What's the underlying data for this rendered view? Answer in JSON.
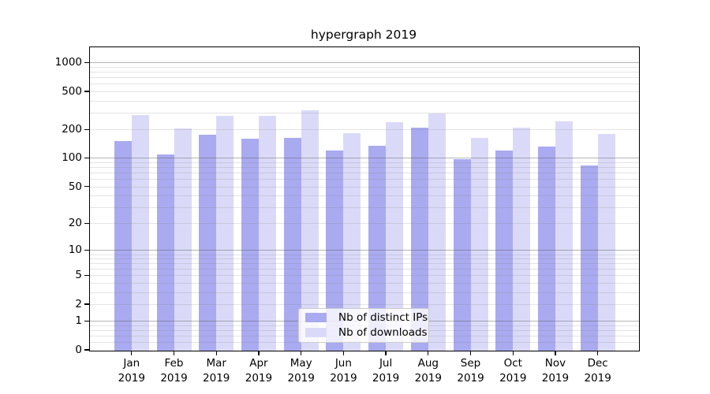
{
  "title": "hypergraph 2019",
  "legend": {
    "items": [
      {
        "label": "Nb of distinct IPs",
        "color": "#aaaaf0"
      },
      {
        "label": "Nb of downloads",
        "color": "#dadaf8"
      }
    ]
  },
  "chart_data": {
    "type": "bar",
    "title": "hypergraph 2019",
    "categories": [
      "Jan",
      "Feb",
      "Mar",
      "Apr",
      "May",
      "Jun",
      "Jul",
      "Aug",
      "Sep",
      "Oct",
      "Nov",
      "Dec"
    ],
    "xtick_year": "2019",
    "series": [
      {
        "name": "Nb of distinct IPs",
        "color": "#aaaaf0",
        "values": [
          152,
          108,
          174,
          159,
          164,
          121,
          134,
          207,
          97,
          120,
          132,
          83
        ]
      },
      {
        "name": "Nb of downloads",
        "color": "#dadaf8",
        "values": [
          280,
          203,
          279,
          277,
          318,
          183,
          239,
          295,
          163,
          207,
          243,
          180
        ]
      }
    ],
    "xlabel": "",
    "ylabel": "",
    "yscale": "log1p",
    "ylim": [
      0,
      1480
    ],
    "ytick_labels": [
      "1000",
      "500",
      "200",
      "100",
      "50",
      "20",
      "10",
      "5",
      "2",
      "1",
      "0"
    ],
    "ytick_values": [
      1000,
      500,
      200,
      100,
      50,
      20,
      10,
      5,
      2,
      1,
      0
    ],
    "major_gridlines": [
      1,
      10,
      100,
      1000
    ],
    "minor_gridlines": [
      0.2,
      0.4,
      0.6,
      0.8,
      2,
      3,
      4,
      5,
      6,
      7,
      8,
      9,
      20,
      30,
      40,
      50,
      60,
      70,
      80,
      90,
      200,
      300,
      400,
      500,
      600,
      700,
      800,
      900
    ],
    "grid": "on",
    "legend_position": "lower center"
  }
}
